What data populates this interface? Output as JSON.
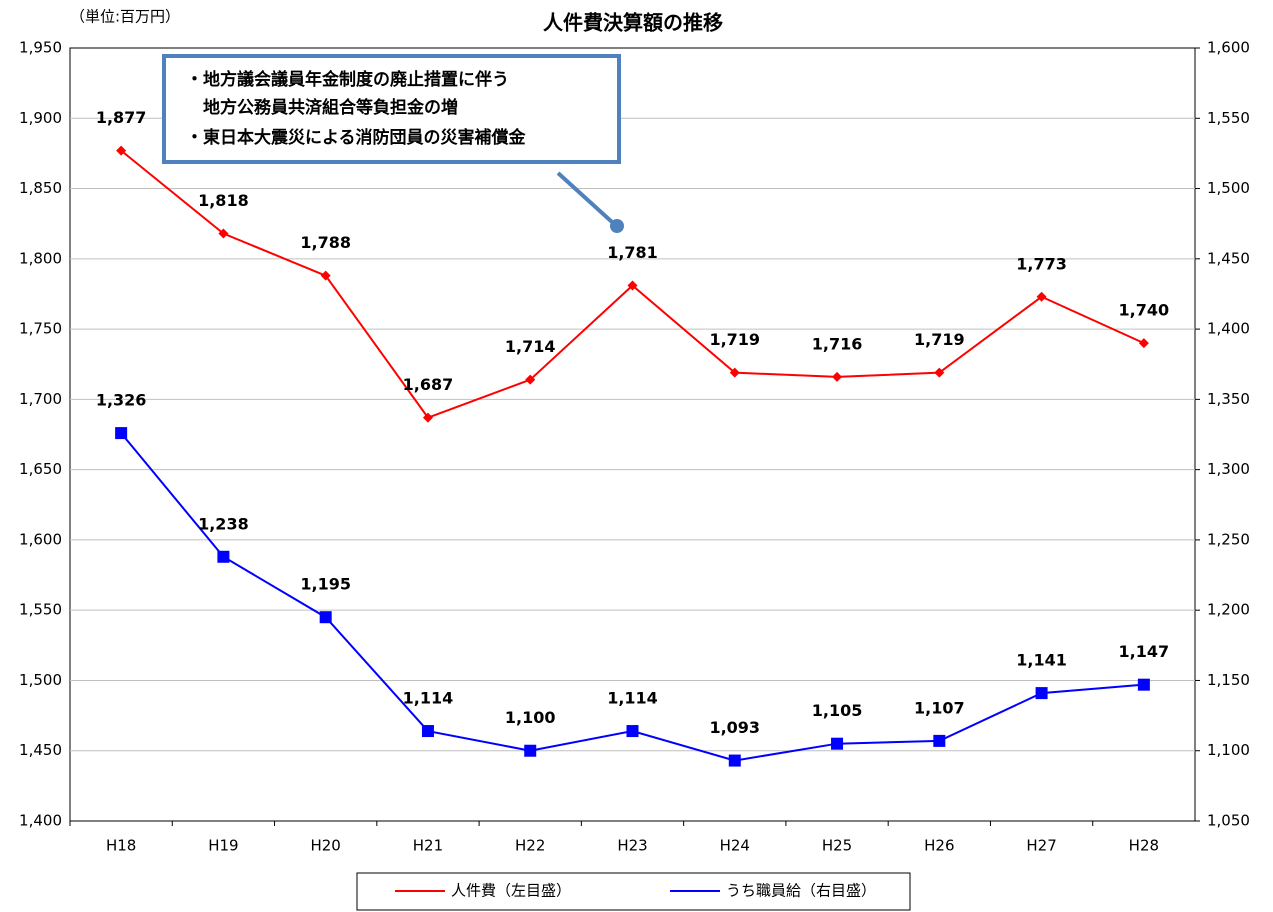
{
  "chart_data": {
    "type": "line",
    "title": "人件費決算額の推移",
    "unit_label": "（単位:百万円）",
    "annotation": [
      "・地方議会議員年金制度の廃止措置に伴う",
      "　地方公務員共済組合等負担金の増",
      "・東日本大震災による消防団員の災害補償金"
    ],
    "categories": [
      "H18",
      "H19",
      "H20",
      "H21",
      "H22",
      "H23",
      "H24",
      "H25",
      "H26",
      "H27",
      "H28"
    ],
    "series": [
      {
        "name": "人件費（左目盛）",
        "color": "#ff0000",
        "marker": "diamond",
        "axis": "y",
        "values": [
          1877,
          1818,
          1788,
          1687,
          1714,
          1781,
          1719,
          1716,
          1719,
          1773,
          1740
        ],
        "value_labels": [
          "1,877",
          "1,818",
          "1,788",
          "1,687",
          "1,714",
          "1,781",
          "1,719",
          "1,716",
          "1,719",
          "1,773",
          "1,740"
        ]
      },
      {
        "name": "うち職員給（右目盛）",
        "color": "#0000ff",
        "marker": "square",
        "axis": "y2",
        "values": [
          1326,
          1238,
          1195,
          1114,
          1100,
          1114,
          1093,
          1105,
          1107,
          1141,
          1147
        ],
        "value_labels": [
          "1,326",
          "1,238",
          "1,195",
          "1,114",
          "1,100",
          "1,114",
          "1,093",
          "1,105",
          "1,107",
          "1,141",
          "1,147"
        ]
      }
    ],
    "ylim": [
      1400,
      1950
    ],
    "yticks": [
      {
        "value": 1400,
        "label": "1,400"
      },
      {
        "value": 1450,
        "label": "1,450"
      },
      {
        "value": 1500,
        "label": "1,500"
      },
      {
        "value": 1550,
        "label": "1,550"
      },
      {
        "value": 1600,
        "label": "1,600"
      },
      {
        "value": 1650,
        "label": "1,650"
      },
      {
        "value": 1700,
        "label": "1,700"
      },
      {
        "value": 1750,
        "label": "1,750"
      },
      {
        "value": 1800,
        "label": "1,800"
      },
      {
        "value": 1850,
        "label": "1,850"
      },
      {
        "value": 1900,
        "label": "1,900"
      },
      {
        "value": 1950,
        "label": "1,950"
      }
    ],
    "y2lim": [
      1050,
      1600
    ],
    "y2ticks": [
      {
        "value": 1050,
        "label": "1,050"
      },
      {
        "value": 1100,
        "label": "1,100"
      },
      {
        "value": 1150,
        "label": "1,150"
      },
      {
        "value": 1200,
        "label": "1,200"
      },
      {
        "value": 1250,
        "label": "1,250"
      },
      {
        "value": 1300,
        "label": "1,300"
      },
      {
        "value": 1350,
        "label": "1,350"
      },
      {
        "value": 1400,
        "label": "1,400"
      },
      {
        "value": 1450,
        "label": "1,450"
      },
      {
        "value": 1500,
        "label": "1,500"
      },
      {
        "value": 1550,
        "label": "1,550"
      },
      {
        "value": 1600,
        "label": "1,600"
      }
    ],
    "grid": true,
    "legend": "bottom"
  }
}
